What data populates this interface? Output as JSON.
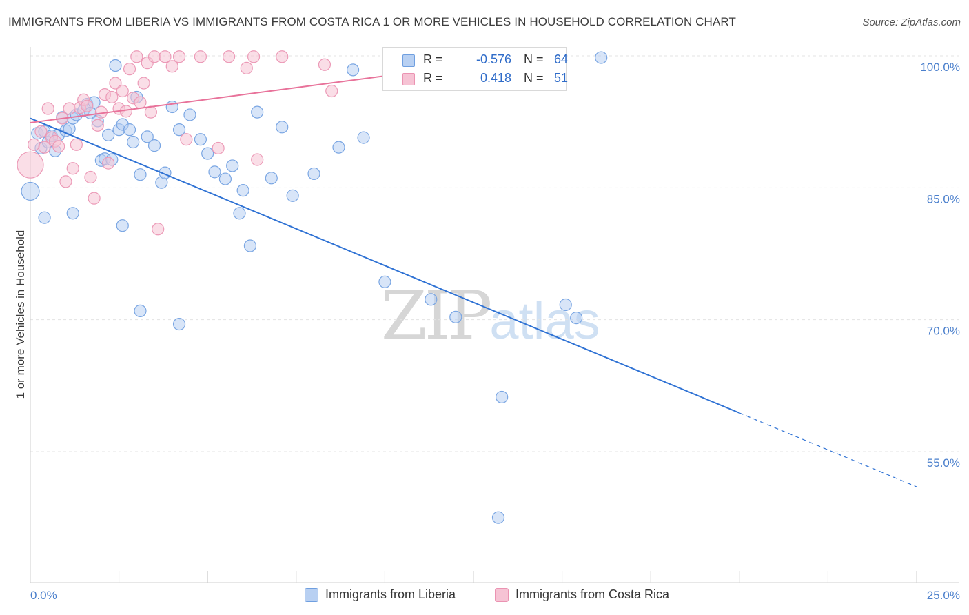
{
  "title": "IMMIGRANTS FROM LIBERIA VS IMMIGRANTS FROM COSTA RICA 1 OR MORE VEHICLES IN HOUSEHOLD CORRELATION CHART",
  "source": "Source: ZipAtlas.com",
  "watermark": {
    "zip": "ZIP",
    "atlas": "atlas"
  },
  "colors": {
    "blue": "#2f72d4",
    "blue_fill": "#b8d0f2",
    "pink": "#e8729a",
    "pink_fill": "#f6c3d4",
    "tick_text": "#4a7fcc"
  },
  "legend": {
    "rows": [
      {
        "label": "R =",
        "r": "-0.576",
        "n_label": "N =",
        "n": "64"
      },
      {
        "label": "R =",
        "r": "0.418",
        "n_label": "N =",
        "n": "51"
      }
    ]
  },
  "chart_data": {
    "type": "scatter",
    "xlabel": "",
    "ylabel": "1 or more Vehicles in Household",
    "xlim": [
      0,
      25
    ],
    "ylim": [
      40,
      101.5
    ],
    "x_tick_labels": [
      "0.0%",
      "25.0%"
    ],
    "y_ticks": [
      {
        "value": 100,
        "label": "100.0%"
      },
      {
        "value": 85,
        "label": "85.0%"
      },
      {
        "value": 70,
        "label": "70.0%"
      },
      {
        "value": 55,
        "label": "55.0%"
      }
    ],
    "grid": true,
    "legend_position": "bottom-center",
    "series": [
      {
        "name": "Immigrants from Liberia",
        "color": "#2f72d4",
        "trend": {
          "x0": 0,
          "y0": 92.9,
          "x1": 20,
          "y1": 59.4,
          "dashed_to_x": 25,
          "dashed_to_y": 51.0
        },
        "points": [
          [
            0.2,
            91.2
          ],
          [
            0.3,
            89.5
          ],
          [
            0.4,
            91.4
          ],
          [
            0.5,
            90.2
          ],
          [
            0.6,
            90.9
          ],
          [
            0.7,
            89.2
          ],
          [
            0.8,
            91.0
          ],
          [
            0.9,
            93.0
          ],
          [
            1.0,
            91.5
          ],
          [
            1.1,
            91.7
          ],
          [
            1.2,
            92.9
          ],
          [
            1.3,
            93.3
          ],
          [
            1.5,
            93.8
          ],
          [
            1.6,
            94.5
          ],
          [
            1.7,
            93.5
          ],
          [
            1.8,
            94.7
          ],
          [
            1.9,
            92.6
          ],
          [
            2.0,
            88.1
          ],
          [
            2.1,
            88.3
          ],
          [
            2.2,
            91.0
          ],
          [
            2.3,
            88.2
          ],
          [
            2.4,
            98.9
          ],
          [
            2.5,
            91.6
          ],
          [
            2.6,
            92.2
          ],
          [
            2.8,
            91.6
          ],
          [
            2.9,
            90.2
          ],
          [
            3.0,
            95.3
          ],
          [
            3.1,
            86.5
          ],
          [
            3.3,
            90.8
          ],
          [
            3.5,
            89.8
          ],
          [
            3.7,
            85.6
          ],
          [
            3.8,
            86.7
          ],
          [
            4.0,
            94.2
          ],
          [
            4.2,
            91.6
          ],
          [
            4.5,
            93.3
          ],
          [
            4.8,
            90.5
          ],
          [
            5.0,
            88.9
          ],
          [
            5.2,
            86.8
          ],
          [
            5.5,
            86.0
          ],
          [
            5.7,
            87.5
          ],
          [
            6.0,
            84.7
          ],
          [
            6.2,
            78.4
          ],
          [
            6.4,
            93.6
          ],
          [
            6.8,
            86.1
          ],
          [
            7.1,
            91.9
          ],
          [
            7.4,
            84.1
          ],
          [
            8.0,
            86.6
          ],
          [
            8.7,
            89.6
          ],
          [
            9.1,
            98.4
          ],
          [
            9.4,
            90.7
          ],
          [
            10.0,
            74.3
          ],
          [
            11.3,
            72.3
          ],
          [
            12.0,
            70.3
          ],
          [
            13.3,
            61.2
          ],
          [
            14.3,
            100.0
          ],
          [
            15.1,
            71.7
          ],
          [
            15.4,
            70.2
          ],
          [
            16.1,
            99.8
          ],
          [
            0.0,
            84.6
          ],
          [
            0.4,
            81.6
          ],
          [
            1.2,
            82.1
          ],
          [
            2.6,
            80.7
          ],
          [
            3.1,
            71.0
          ],
          [
            4.2,
            69.5
          ],
          [
            5.9,
            82.1
          ],
          [
            13.2,
            47.5
          ]
        ]
      },
      {
        "name": "Immigrants from Costa Rica",
        "color": "#e8729a",
        "trend": {
          "x0": 0,
          "y0": 92.4,
          "x1": 14.3,
          "y1": 100.0
        },
        "points": [
          [
            0.0,
            87.6
          ],
          [
            0.1,
            89.9
          ],
          [
            0.3,
            91.4
          ],
          [
            0.4,
            89.6
          ],
          [
            0.5,
            94.0
          ],
          [
            0.6,
            90.7
          ],
          [
            0.7,
            90.3
          ],
          [
            0.8,
            89.7
          ],
          [
            0.9,
            92.9
          ],
          [
            1.0,
            85.7
          ],
          [
            1.1,
            94.0
          ],
          [
            1.2,
            87.2
          ],
          [
            1.3,
            89.9
          ],
          [
            1.4,
            94.1
          ],
          [
            1.5,
            95.0
          ],
          [
            1.6,
            94.3
          ],
          [
            1.7,
            86.2
          ],
          [
            1.8,
            83.8
          ],
          [
            1.9,
            92.1
          ],
          [
            2.0,
            93.6
          ],
          [
            2.1,
            95.6
          ],
          [
            2.2,
            87.8
          ],
          [
            2.3,
            95.3
          ],
          [
            2.4,
            96.9
          ],
          [
            2.5,
            94.0
          ],
          [
            2.6,
            96.0
          ],
          [
            2.7,
            93.7
          ],
          [
            2.8,
            98.5
          ],
          [
            2.9,
            95.2
          ],
          [
            3.0,
            99.9
          ],
          [
            3.1,
            94.7
          ],
          [
            3.2,
            96.9
          ],
          [
            3.3,
            99.2
          ],
          [
            3.4,
            93.6
          ],
          [
            3.5,
            99.9
          ],
          [
            3.6,
            80.3
          ],
          [
            3.8,
            99.9
          ],
          [
            4.0,
            98.8
          ],
          [
            4.2,
            99.9
          ],
          [
            4.4,
            90.5
          ],
          [
            4.8,
            99.9
          ],
          [
            5.3,
            89.5
          ],
          [
            5.6,
            99.9
          ],
          [
            6.1,
            98.6
          ],
          [
            6.3,
            99.9
          ],
          [
            6.4,
            88.2
          ],
          [
            7.1,
            99.9
          ],
          [
            8.3,
            99.0
          ],
          [
            8.5,
            96.0
          ],
          [
            10.8,
            100.0
          ],
          [
            13.4,
            99.2
          ]
        ]
      }
    ]
  },
  "bottom_legend": [
    "Immigrants from Liberia",
    "Immigrants from Costa Rica"
  ]
}
